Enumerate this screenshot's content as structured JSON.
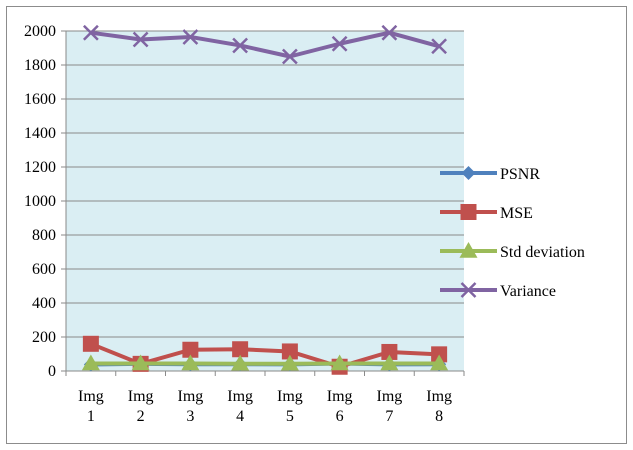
{
  "chart_data": {
    "type": "line",
    "title": "",
    "xlabel": "",
    "ylabel": "",
    "categories": [
      [
        "Img",
        "1"
      ],
      [
        "Img",
        "2"
      ],
      [
        "Img",
        "3"
      ],
      [
        "Img",
        "4"
      ],
      [
        "Img",
        "5"
      ],
      [
        "Img",
        "6"
      ],
      [
        "Img",
        "7"
      ],
      [
        "Img",
        "8"
      ]
    ],
    "ylim": [
      0,
      2000
    ],
    "yticks": [
      0,
      200,
      400,
      600,
      800,
      1000,
      1200,
      1400,
      1600,
      1800,
      2000
    ],
    "grid": true,
    "plot_background": "#daeef3",
    "legend_position": "right",
    "series": [
      {
        "name": "PSNR",
        "color": "#4f81bd",
        "marker": "diamond",
        "values": [
          38,
          42,
          40,
          40,
          39,
          44,
          39,
          40
        ]
      },
      {
        "name": "MSE",
        "color": "#c0504d",
        "marker": "square",
        "values": [
          160,
          42,
          125,
          128,
          115,
          25,
          112,
          98
        ]
      },
      {
        "name": "Std deviation",
        "color": "#9bbb59",
        "marker": "triangle",
        "values": [
          44,
          44,
          44,
          43,
          43,
          44,
          44,
          44
        ]
      },
      {
        "name": "Variance",
        "color": "#8064a2",
        "marker": "x",
        "values": [
          1990,
          1950,
          1965,
          1915,
          1850,
          1925,
          1990,
          1910
        ]
      }
    ]
  }
}
